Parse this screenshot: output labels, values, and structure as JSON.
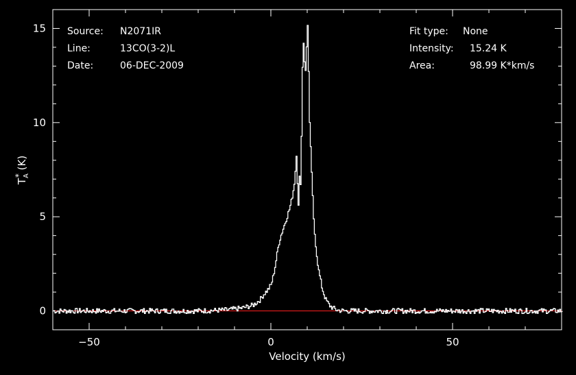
{
  "chart_data": {
    "type": "line",
    "info_left": [
      {
        "key": "Source:",
        "value": "N2071IR"
      },
      {
        "key": "Line:",
        "value": "13CO(3-2)L"
      },
      {
        "key": "Date:",
        "value": "06-DEC-2009"
      }
    ],
    "info_right": [
      {
        "key": "Fit type:",
        "value": "None"
      },
      {
        "key": "Intensity:",
        "value": "15.24 K"
      },
      {
        "key": "Area:",
        "value": "98.99 K*km/s"
      }
    ],
    "xlabel": "Velocity (km/s)",
    "ylabel": "T_A* (K)",
    "xlim": [
      -60,
      80
    ],
    "ylim": [
      -1,
      16
    ],
    "x_ticks": [
      -50,
      0,
      50
    ],
    "x_tick_labels": [
      "−50",
      "0",
      "50"
    ],
    "y_ticks": [
      0,
      5,
      10,
      15
    ],
    "y_tick_labels": [
      "0",
      "5",
      "10",
      "15"
    ],
    "baseline": 0,
    "colors": {
      "background": "#000000",
      "axes": "#ffffff",
      "spectrum": "#ffffff",
      "baseline": "#ff2020"
    },
    "series": [
      {
        "x": [
          -60,
          -40,
          -20,
          -12,
          -8,
          -5,
          -3,
          -2,
          -1,
          0,
          0.5,
          1,
          1.5,
          2,
          2.5,
          3,
          3.5,
          4,
          4.5,
          5,
          5.5,
          6,
          6.5,
          7,
          7.3,
          7.5,
          7.7,
          8,
          8.3,
          8.6,
          9,
          9.3,
          9.6,
          10,
          10.3,
          10.6,
          11,
          11.3,
          11.6,
          12,
          12.5,
          13,
          14,
          15,
          16,
          17,
          18,
          20,
          25,
          40,
          60,
          80
        ],
        "y": [
          0,
          0,
          0,
          0.05,
          0.15,
          0.3,
          0.6,
          0.9,
          1.1,
          1.4,
          1.8,
          2.3,
          2.9,
          3.5,
          3.9,
          4.2,
          4.5,
          4.8,
          5.1,
          5.4,
          5.8,
          6.3,
          7.0,
          8.6,
          6.0,
          5.5,
          7.2,
          6.5,
          9.0,
          13.0,
          14.8,
          12.0,
          13.5,
          15.24,
          12.5,
          9.5,
          8.0,
          6.5,
          5.0,
          4.0,
          3.0,
          2.2,
          1.2,
          0.6,
          0.3,
          0.15,
          0.05,
          0,
          0,
          0,
          0,
          0
        ]
      }
    ]
  }
}
